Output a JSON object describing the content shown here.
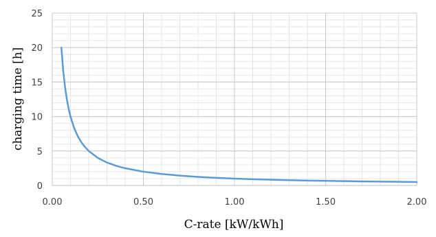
{
  "chart_data": {
    "type": "line",
    "title": "",
    "xlabel": "C-rate [kW/kWh]",
    "ylabel": "charging time [h]",
    "xlim": [
      0,
      2
    ],
    "ylim": [
      0,
      25
    ],
    "x_ticks": [
      0,
      0.5,
      1,
      1.5,
      2
    ],
    "x_tick_labels": [
      "0.00",
      "0.50",
      "1.00",
      "1.50",
      "2.00"
    ],
    "y_ticks": [
      0,
      5,
      10,
      15,
      20,
      25
    ],
    "y_tick_labels": [
      "0",
      "5",
      "10",
      "15",
      "20",
      "25"
    ],
    "x_minor_step": 0.1,
    "y_minor_step": 1,
    "grid": true,
    "legend": "none",
    "series": [
      {
        "color": "#5b9bd5",
        "x": [
          0.05,
          0.06,
          0.07,
          0.08,
          0.09,
          0.1,
          0.12,
          0.14,
          0.16,
          0.18,
          0.2,
          0.25,
          0.3,
          0.35,
          0.4,
          0.5,
          0.6,
          0.7,
          0.8,
          0.9,
          1.0,
          1.1,
          1.2,
          1.3,
          1.4,
          1.5,
          1.6,
          1.7,
          1.8,
          1.9,
          2.0
        ],
        "y": [
          20,
          16.67,
          14.29,
          12.5,
          11.11,
          10,
          8.33,
          7.14,
          6.25,
          5.56,
          5,
          4,
          3.33,
          2.86,
          2.5,
          2,
          1.67,
          1.43,
          1.25,
          1.11,
          1,
          0.91,
          0.83,
          0.77,
          0.71,
          0.67,
          0.63,
          0.59,
          0.56,
          0.53,
          0.5
        ]
      }
    ]
  }
}
